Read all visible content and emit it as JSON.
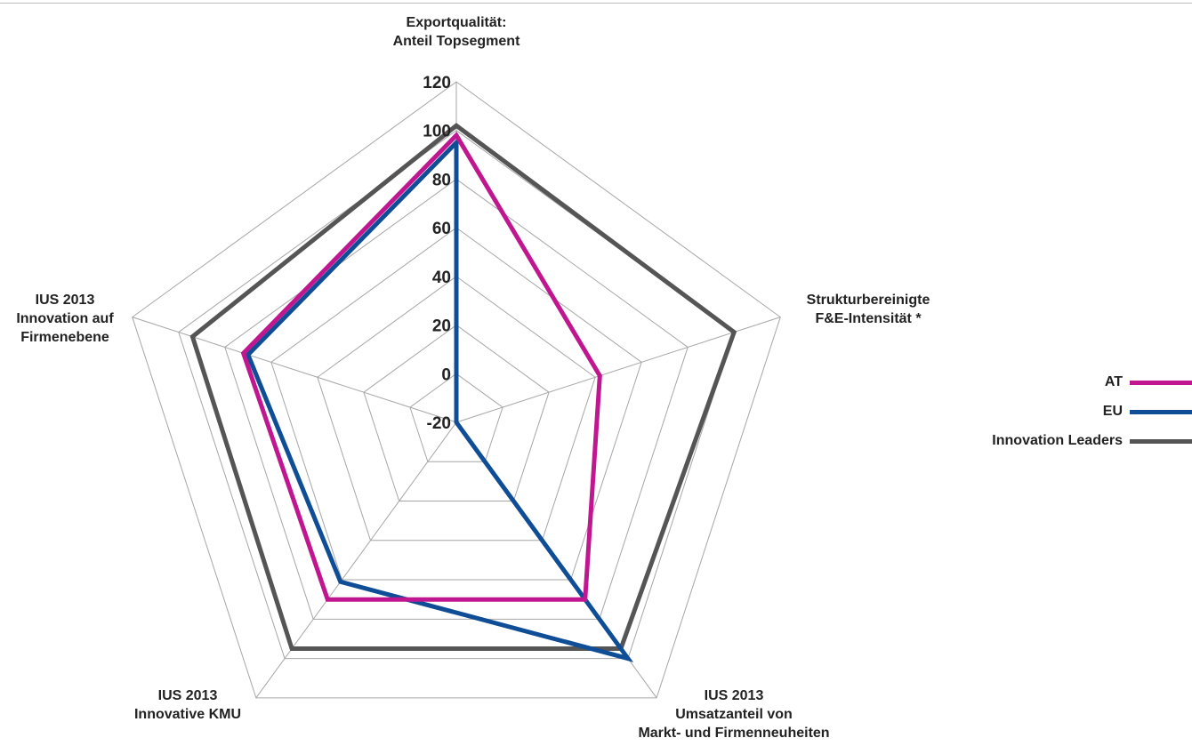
{
  "chart_data": {
    "type": "radar",
    "title": "",
    "axes": [
      {
        "label": [
          "Exportqualität:",
          "Anteil Topsegment"
        ]
      },
      {
        "label": [
          "Strukturbereinigte",
          "F&E-Intensität *"
        ]
      },
      {
        "label": [
          "IUS 2013",
          "Umsatzanteil von",
          "Markt- und Firmenneuheiten"
        ]
      },
      {
        "label": [
          "IUS 2013",
          "Innovative KMU"
        ]
      },
      {
        "label": [
          "IUS 2013",
          "Innovation auf",
          "Firmenebene"
        ]
      }
    ],
    "rlim": [
      -20,
      120
    ],
    "ticks": [
      "-20",
      "0",
      "20",
      "40",
      "60",
      "80",
      "100",
      "120"
    ],
    "tick_values": [
      -20,
      0,
      20,
      40,
      60,
      80,
      100,
      120
    ],
    "grid": true,
    "legend_position": "right",
    "series": [
      {
        "name": "AT",
        "color": "#c0168f",
        "values": [
          98,
          42,
          70,
          70,
          72
        ]
      },
      {
        "name": "EU",
        "color": "#0f4e96",
        "values": [
          95,
          -20,
          100,
          61,
          70
        ]
      },
      {
        "name": "Innovation Leaders",
        "color": "#555555",
        "values": [
          102,
          100,
          95,
          95,
          94
        ]
      }
    ]
  }
}
